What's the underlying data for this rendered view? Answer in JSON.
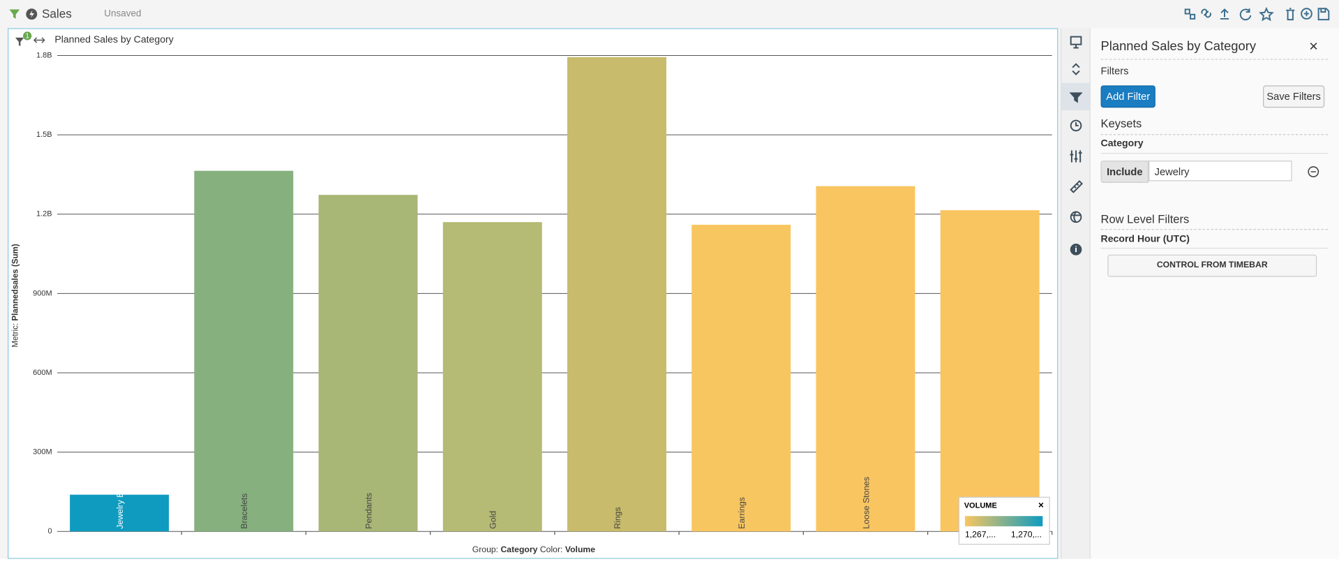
{
  "header": {
    "title": "Sales",
    "status": "Unsaved",
    "filter_badge": "1"
  },
  "chart_data": {
    "type": "bar",
    "title": "Planned Sales by Category",
    "y_label_prefix": "Metric:",
    "y_label": "Plannedsales (Sum)",
    "categories": [
      "Jewelry Boxes",
      "Bracelets",
      "Pendants",
      "Gold",
      "Rings",
      "Earrings",
      "Loose Stones",
      null
    ],
    "values": [
      139000000,
      1364000000,
      1273000000,
      1170000000,
      1794000000,
      1160000000,
      1306000000,
      1215000000
    ],
    "colors": [
      "#0e9bbf",
      "#86b07e",
      "#a8b676",
      "#b5ba74",
      "#c8bb6b",
      "#f8c660",
      "#f9c561",
      "#f9c561"
    ],
    "ylim": [
      0,
      1800000000
    ],
    "yticks": [
      0,
      {
        "value": 300000000,
        "label": "300M"
      },
      {
        "value": 600000000,
        "label": "600M"
      },
      {
        "value": 900000000,
        "label": "900M"
      },
      {
        "value": 1200000000,
        "label": "1.2B"
      },
      {
        "value": 1500000000,
        "label": "1.5B"
      },
      {
        "value": 1800000000,
        "label": "1.8B"
      }
    ],
    "grid": true,
    "footer": {
      "group_label": "Group:",
      "group": "Category",
      "color_label": "Color:",
      "color": "Volume"
    },
    "legend": {
      "title": "VOLUME",
      "min_label": "1,267,...",
      "max_label": "1,270,...",
      "color_low": "#f8c660",
      "color_high": "#0e9bbf"
    }
  },
  "panel": {
    "title": "Planned Sales by Category",
    "filters": "Filters",
    "add_filter": "Add Filter",
    "save_filters": "Save Filters",
    "keysets": "Keysets",
    "category": "Category",
    "include": "Include",
    "include_value": "Jewelry",
    "row_level_filters": "Row Level Filters",
    "record_hour": "Record Hour (UTC)",
    "timebar_button": "CONTROL FROM TIMEBAR"
  }
}
